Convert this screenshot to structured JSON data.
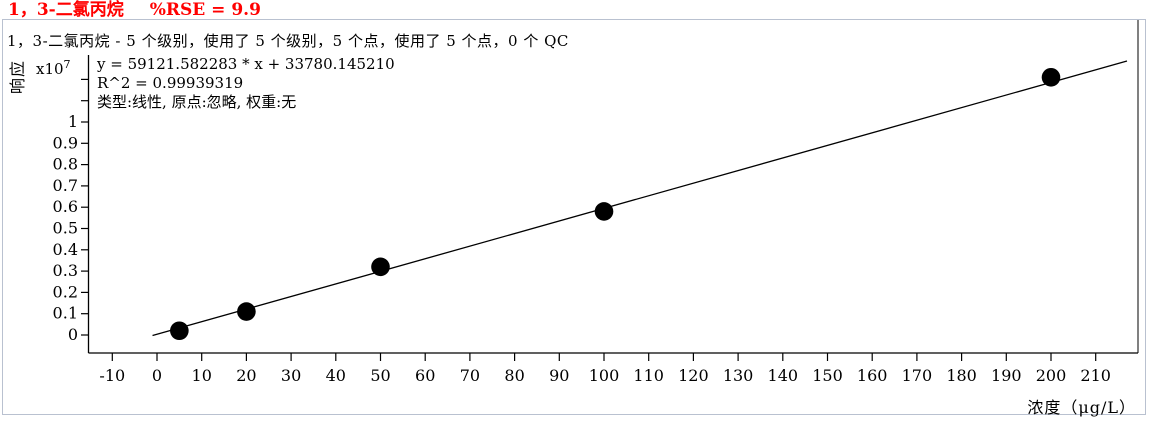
{
  "title": {
    "compound": "1，3-二氯丙烷",
    "rse": "%RSE = 9.9"
  },
  "info_line": "1，3-二氯丙烷 - 5 个级别，使用了 5 个级别，5 个点，使用了 5 个点，0 个 QC",
  "stats": {
    "equation": "y = 59121.582283 * x  + 33780.145210",
    "r2": "R^2 = 0.99939319",
    "model": "类型:线性, 原点:忽略, 权重:无"
  },
  "axes": {
    "y_label": "响应",
    "y_scale_base": "x10",
    "y_scale_exp": "7",
    "x_label": "浓度（μg/L）"
  },
  "chart_data": {
    "type": "scatter",
    "title": "1，3-二氯丙烷 %RSE = 9.9",
    "x": [
      5,
      20,
      50,
      100,
      200
    ],
    "y_x1e7": [
      0.02,
      0.11,
      0.32,
      0.58,
      1.21
    ],
    "fit": {
      "kind": "linear",
      "slope": 59121.582283,
      "intercept": 33780.14521,
      "r2": 0.99939319,
      "line_x_range": [
        -1,
        217
      ]
    },
    "xlabel": "浓度（μg/L）",
    "ylabel": "响应",
    "y_scale_label": "x10^7",
    "x_ticks": {
      "min": -10,
      "max": 210,
      "step": 10
    },
    "y_ticks": {
      "min": 0,
      "max": 1,
      "step": 0.1,
      "extra_unlabeled": [
        1.1,
        1.2
      ]
    },
    "xlim": [
      -15.4,
      219.5
    ],
    "ylim": [
      -0.085,
      1.31
    ],
    "grid": false,
    "legend": false,
    "point_color": "#000000",
    "line_color": "#000000"
  }
}
